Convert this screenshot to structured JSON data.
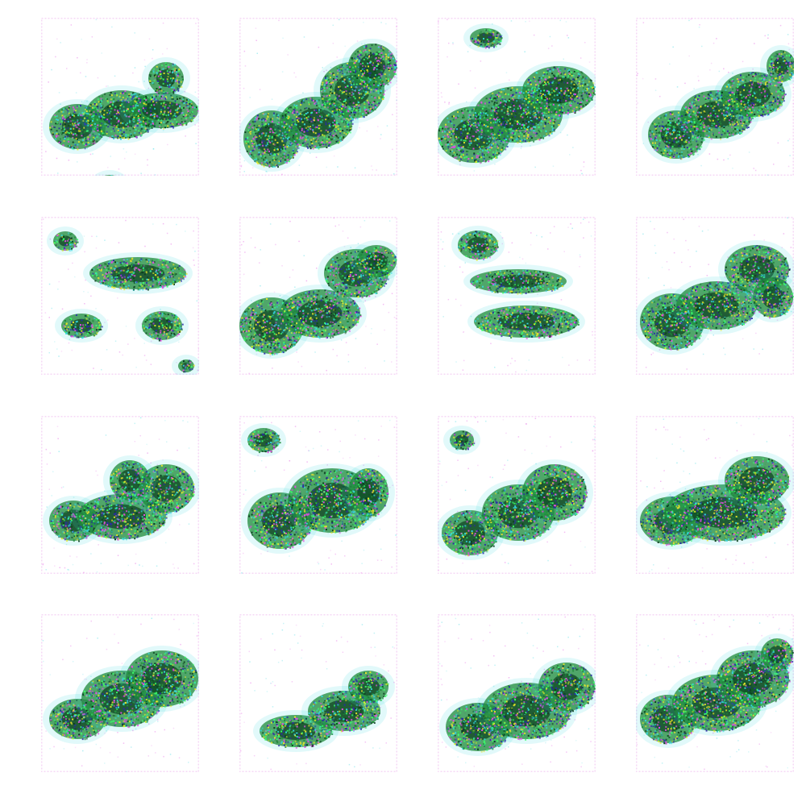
{
  "figure": {
    "rows": 4,
    "cols": 4,
    "background": "#ffffff",
    "palette": {
      "dark_core": "#0b3d1f",
      "green": "#1f8a3a",
      "bright_green": "#3cff6a",
      "blue": "#2a2aa8",
      "cyan": "#36d6e0",
      "magenta": "#e04fe0",
      "pink_tint": "#f6d8f6",
      "yellow": "#e6e62a"
    }
  }
}
